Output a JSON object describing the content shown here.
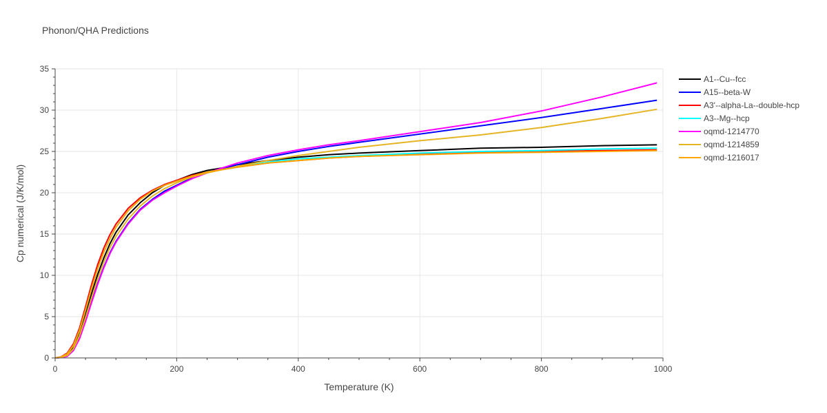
{
  "chart_data": {
    "type": "line",
    "title": "Phonon/QHA Predictions",
    "xlabel": "Temperature (K)",
    "ylabel": "Cp numerical (J/K/mol)",
    "xlim": [
      0,
      1000
    ],
    "ylim": [
      0,
      35
    ],
    "xticks": [
      0,
      200,
      400,
      600,
      800,
      1000
    ],
    "yticks": [
      0,
      5,
      10,
      15,
      20,
      25,
      30,
      35
    ],
    "grid": true,
    "legend_position": "top-right",
    "x": [
      0,
      10,
      20,
      30,
      40,
      50,
      60,
      70,
      80,
      90,
      100,
      120,
      140,
      160,
      180,
      200,
      225,
      250,
      275,
      300,
      350,
      400,
      450,
      500,
      600,
      700,
      800,
      900,
      990
    ],
    "series": [
      {
        "name": "A1--Cu--fcc",
        "color": "#000000",
        "values": [
          0,
          0.1,
          0.4,
          1.3,
          3.0,
          5.3,
          7.8,
          10.1,
          12.1,
          13.8,
          15.2,
          17.3,
          18.8,
          20.0,
          20.9,
          21.5,
          22.2,
          22.7,
          23.0,
          23.4,
          23.9,
          24.3,
          24.6,
          24.8,
          25.1,
          25.4,
          25.5,
          25.7,
          25.8
        ]
      },
      {
        "name": "A15--beta-W",
        "color": "#0000ff",
        "values": [
          0,
          0.05,
          0.2,
          0.9,
          2.4,
          4.5,
          6.8,
          9.0,
          11.0,
          12.7,
          14.1,
          16.3,
          18.0,
          19.2,
          20.2,
          20.9,
          21.8,
          22.4,
          22.9,
          23.4,
          24.3,
          25.0,
          25.6,
          26.1,
          27.1,
          28.1,
          29.1,
          30.2,
          31.2
        ]
      },
      {
        "name": "A3'--alpha-La--double-hcp",
        "color": "#ff0000",
        "values": [
          0,
          0.15,
          0.6,
          1.7,
          3.6,
          6.2,
          8.9,
          11.3,
          13.3,
          14.9,
          16.2,
          18.1,
          19.4,
          20.3,
          21.0,
          21.5,
          22.1,
          22.5,
          22.8,
          23.1,
          23.6,
          23.9,
          24.2,
          24.4,
          24.7,
          24.9,
          25.0,
          25.1,
          25.2
        ]
      },
      {
        "name": "A3--Mg--hcp",
        "color": "#00ffff",
        "values": [
          0,
          0.12,
          0.5,
          1.5,
          3.3,
          5.8,
          8.4,
          10.8,
          12.8,
          14.4,
          15.8,
          17.8,
          19.2,
          20.2,
          20.9,
          21.4,
          22.0,
          22.5,
          22.8,
          23.1,
          23.7,
          24.1,
          24.3,
          24.5,
          24.8,
          25.0,
          25.1,
          25.3,
          25.4
        ]
      },
      {
        "name": "oqmd-1214770",
        "color": "#ff00ff",
        "values": [
          0,
          0.05,
          0.2,
          0.9,
          2.3,
          4.4,
          6.7,
          8.9,
          10.9,
          12.6,
          14.0,
          16.2,
          17.9,
          19.1,
          20.0,
          20.8,
          21.7,
          22.4,
          23.0,
          23.6,
          24.5,
          25.2,
          25.8,
          26.3,
          27.4,
          28.5,
          29.9,
          31.6,
          33.3
        ]
      },
      {
        "name": "oqmd-1214859",
        "color": "#e6b422",
        "values": [
          0,
          0.08,
          0.3,
          1.1,
          2.7,
          4.9,
          7.3,
          9.6,
          11.6,
          13.3,
          14.7,
          16.8,
          18.4,
          19.6,
          20.5,
          21.2,
          21.9,
          22.4,
          22.8,
          23.2,
          23.9,
          24.5,
          25.0,
          25.5,
          26.3,
          27.0,
          27.9,
          29.0,
          30.1
        ]
      },
      {
        "name": "oqmd-1216017",
        "color": "#ffa500",
        "values": [
          0,
          0.12,
          0.5,
          1.5,
          3.3,
          5.8,
          8.4,
          10.8,
          12.8,
          14.4,
          15.8,
          17.8,
          19.2,
          20.2,
          20.9,
          21.4,
          22.0,
          22.5,
          22.8,
          23.1,
          23.6,
          23.9,
          24.2,
          24.4,
          24.6,
          24.8,
          24.9,
          25.0,
          25.1
        ]
      }
    ]
  }
}
